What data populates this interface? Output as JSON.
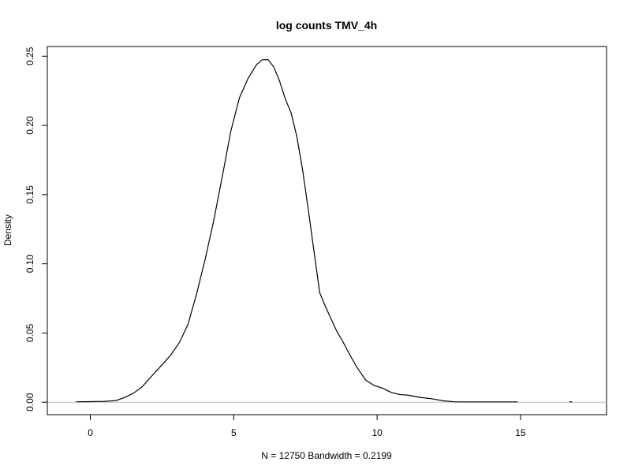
{
  "chart_data": {
    "type": "line",
    "title": "log counts TMV_4h",
    "xlabel": "N = 12750   Bandwidth = 0.2199",
    "ylabel": "Density",
    "xlim": [
      -1.5,
      18.0
    ],
    "ylim": [
      -0.009,
      0.257
    ],
    "x_ticks": [
      0,
      5,
      10,
      15
    ],
    "y_ticks": [
      0.0,
      0.05,
      0.1,
      0.15,
      0.2,
      0.25
    ],
    "x_tick_labels": [
      "0",
      "5",
      "10",
      "15"
    ],
    "y_tick_labels": [
      "0.00",
      "0.05",
      "0.10",
      "0.15",
      "0.20",
      "0.25"
    ],
    "grid": false,
    "legend": "none",
    "baseline": 0,
    "line_color": "#000000",
    "baseline_color": "#bebebe",
    "series": [
      {
        "x": [
          -0.5,
          0.0,
          0.5,
          0.9,
          1.2,
          1.5,
          1.8,
          2.1,
          2.5,
          2.8,
          3.1,
          3.4,
          3.7,
          4.0,
          4.3,
          4.6,
          4.9,
          5.2,
          5.5,
          5.8,
          6.0,
          6.2,
          6.4,
          6.6,
          6.8,
          7.0,
          7.2,
          7.4,
          7.6,
          7.8,
          8.0,
          8.2,
          8.4,
          8.6,
          8.8,
          9.0,
          9.3,
          9.6,
          9.9,
          10.2,
          10.5,
          10.8,
          11.1,
          11.5,
          11.9,
          12.3,
          12.7,
          13.1,
          13.5,
          14.0,
          14.5,
          14.9
        ],
        "y": [
          0.0003,
          0.0004,
          0.0006,
          0.0012,
          0.0035,
          0.0065,
          0.011,
          0.018,
          0.027,
          0.034,
          0.043,
          0.056,
          0.078,
          0.103,
          0.131,
          0.163,
          0.196,
          0.22,
          0.234,
          0.244,
          0.2475,
          0.2475,
          0.242,
          0.232,
          0.219,
          0.209,
          0.192,
          0.168,
          0.139,
          0.109,
          0.079,
          0.069,
          0.06,
          0.051,
          0.044,
          0.036,
          0.025,
          0.016,
          0.012,
          0.01,
          0.007,
          0.0055,
          0.005,
          0.0035,
          0.0025,
          0.001,
          0.0003,
          0.0002,
          0.0002,
          0.0002,
          0.0002,
          0.0002
        ]
      },
      {
        "x": [
          16.7,
          16.8
        ],
        "y": [
          0.0003,
          0.0003
        ]
      }
    ]
  }
}
